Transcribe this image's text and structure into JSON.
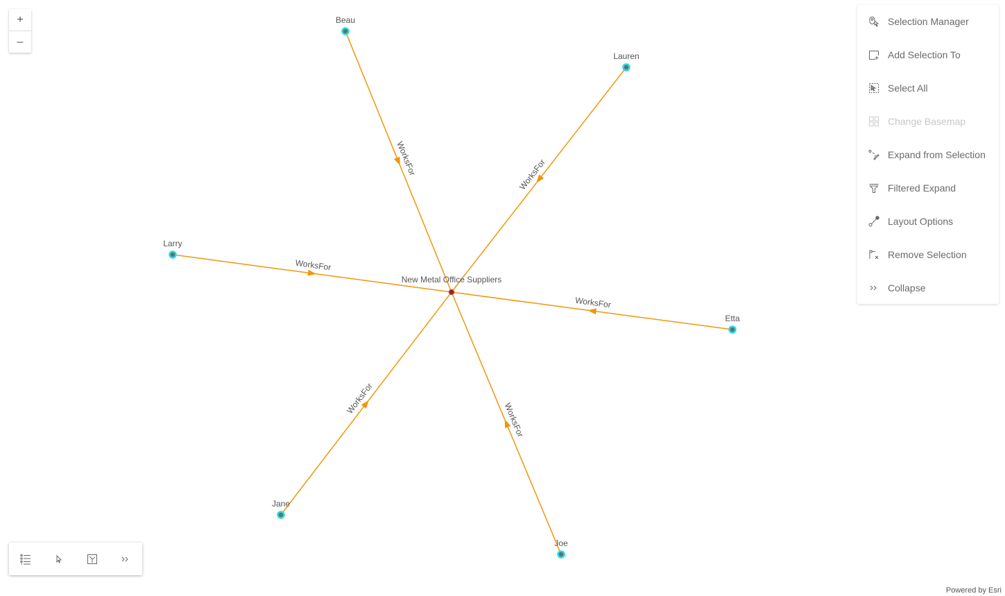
{
  "zoom": {
    "in_label": "+",
    "out_label": "–"
  },
  "colors": {
    "edge": "#f0960a",
    "node_ring": "#19e0f0",
    "node_fill": "#7a6a58",
    "center_fill": "#b01c1c",
    "label": "#555555"
  },
  "graph": {
    "center": {
      "label": "New Metal Office Suppliers"
    },
    "edge_label": "WorksFor",
    "nodes": [
      {
        "label": "Beau"
      },
      {
        "label": "Lauren"
      },
      {
        "label": "Larry"
      },
      {
        "label": "Etta"
      },
      {
        "label": "Jane"
      },
      {
        "label": "Joe"
      }
    ]
  },
  "menu": {
    "items": [
      {
        "label": "Selection Manager",
        "icon": "selection-manager-icon",
        "disabled": false
      },
      {
        "label": "Add Selection To",
        "icon": "add-selection-icon",
        "disabled": false
      },
      {
        "label": "Select All",
        "icon": "select-all-icon",
        "disabled": false
      },
      {
        "label": "Change Basemap",
        "icon": "basemap-icon",
        "disabled": true
      },
      {
        "label": "Expand from Selection",
        "icon": "expand-icon",
        "disabled": false
      },
      {
        "label": "Filtered Expand",
        "icon": "filter-icon",
        "disabled": false
      },
      {
        "label": "Layout Options",
        "icon": "layout-icon",
        "disabled": false
      },
      {
        "label": "Remove Selection",
        "icon": "remove-selection-icon",
        "disabled": false
      },
      {
        "label": "Collapse",
        "icon": "chevrons-right-icon",
        "disabled": false
      }
    ]
  },
  "toolbar": {
    "icons": [
      "list-icon",
      "cursor-icon",
      "layout-icon",
      "chevrons-right-icon"
    ]
  },
  "attribution": "Powered by Esri"
}
